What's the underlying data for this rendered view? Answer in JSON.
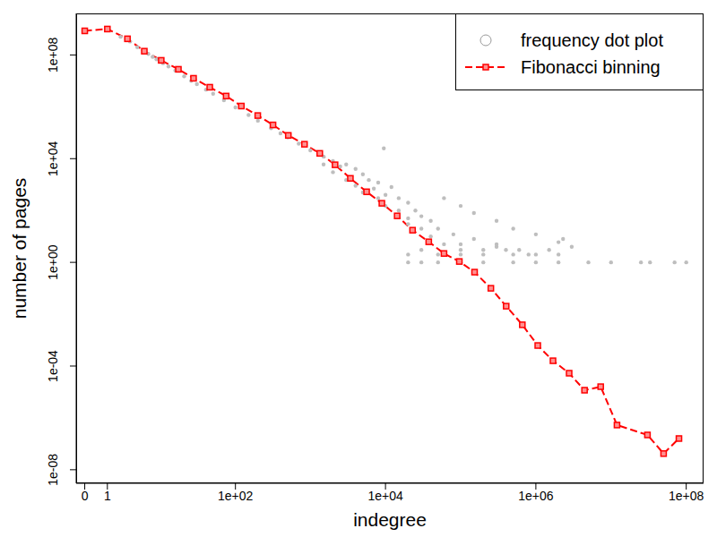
{
  "chart_data": {
    "type": "scatter",
    "xlabel": "indegree",
    "ylabel": "number of pages",
    "log": true,
    "legend": "top-right",
    "xlim": [
      -0.3,
      170000000
    ],
    "ylim": [
      3e-09,
      4000000000
    ],
    "xticks": [
      0,
      1,
      {
        "value": 100,
        "label": "1e+02"
      },
      {
        "value": 10000,
        "label": "1e+04"
      },
      {
        "value": 1000000,
        "label": "1e+06"
      },
      {
        "value": 100000000,
        "label": "1e+08"
      }
    ],
    "yticks": [
      {
        "value": 1e-08,
        "label": "1e-08"
      },
      {
        "value": 0.0001,
        "label": "1e-04"
      },
      {
        "value": 1,
        "label": "1e+00"
      },
      {
        "value": 10000,
        "label": "1e+04"
      },
      {
        "value": 100000000,
        "label": "1e+08"
      }
    ],
    "series": [
      {
        "name": "frequency dot plot",
        "type": "scatter",
        "color": "#bebebe",
        "marker": "circle",
        "x": [
          0,
          1,
          2,
          3,
          4,
          5,
          6,
          7,
          8,
          10,
          12,
          15,
          20,
          25,
          30,
          40,
          50,
          70,
          100,
          150,
          200,
          300,
          400,
          500,
          700,
          1000,
          1500,
          1500,
          2000,
          2000,
          2500,
          3000,
          3000,
          4000,
          4000,
          5000,
          5000,
          6000,
          7000,
          8000,
          8000,
          9500,
          10000,
          10000,
          12000,
          15000,
          15000,
          20000,
          20000,
          20000,
          25000,
          30000,
          30000,
          40000,
          40000,
          50000,
          60000,
          60000,
          80000,
          100000,
          100000,
          150000,
          150000,
          200000,
          300000,
          300000,
          400000,
          500000,
          600000,
          800000,
          1000000,
          1500000,
          2000000,
          2300000,
          3000000,
          20000,
          30000,
          50000,
          100000,
          200000,
          500000,
          1000000,
          2000000,
          5000000,
          10000000,
          25000000,
          33000000,
          70000000,
          100000000,
          20000,
          50000,
          100000,
          200000,
          500000,
          1000000,
          2000000,
          30000,
          100000,
          300000
        ],
        "values": [
          850000000,
          1000000000,
          500000000,
          330000000,
          200000000,
          150000000,
          110000000,
          85000000,
          68000000,
          48000000,
          36000000,
          25000000,
          15000000,
          10000000,
          7500000,
          4600000,
          3200000,
          1800000,
          950000,
          480000,
          290000,
          150000,
          95000,
          66000,
          38000,
          21000,
          12000,
          6000,
          8000,
          3000,
          5000,
          1500,
          6000,
          4000,
          900,
          2500,
          500,
          1500,
          700,
          300,
          1200,
          25000,
          400,
          150,
          800,
          100,
          300,
          50,
          200,
          30,
          100,
          20,
          60,
          10,
          40,
          20,
          5,
          300,
          12,
          5,
          150,
          8,
          80,
          3,
          5,
          40,
          3,
          20,
          3,
          2,
          12,
          3,
          6,
          8,
          4,
          1,
          1,
          1,
          1,
          1,
          1,
          1,
          1,
          1,
          1,
          1,
          1,
          1,
          1,
          2,
          2,
          2,
          2,
          2,
          2,
          2,
          3,
          3,
          4
        ]
      },
      {
        "name": "Fibonacci binning",
        "type": "line",
        "color": "#ff0000",
        "marker": "square",
        "line_style": "dashed",
        "x": [
          0,
          1,
          2.7,
          5.2,
          9.4,
          16.6,
          27,
          45,
          75,
          120,
          199,
          318,
          509,
          836,
          1335,
          2133,
          3412,
          5610,
          8950,
          14300,
          22900,
          37600,
          60000,
          96000,
          153000,
          252000,
          403000,
          661000,
          1060000,
          1690000,
          2770000,
          4440000,
          7280000,
          12000000,
          30500000,
          50000000,
          80000000
        ],
        "values": [
          850000000,
          1000000000,
          420000000,
          140000000,
          62000000,
          28000000,
          12600000,
          5700000,
          2600000,
          1070000,
          460000,
          200000,
          79000,
          36000,
          16000,
          5800,
          1740,
          527,
          190,
          62,
          17.4,
          6.2,
          2.2,
          1.08,
          0.42,
          0.1,
          0.0204,
          0.0039,
          0.00062,
          0.00016,
          5.3e-05,
          1.17e-05,
          1.6e-05,
          5.3e-07,
          2.2e-07,
          4.2e-08,
          1.6e-07
        ]
      }
    ]
  }
}
